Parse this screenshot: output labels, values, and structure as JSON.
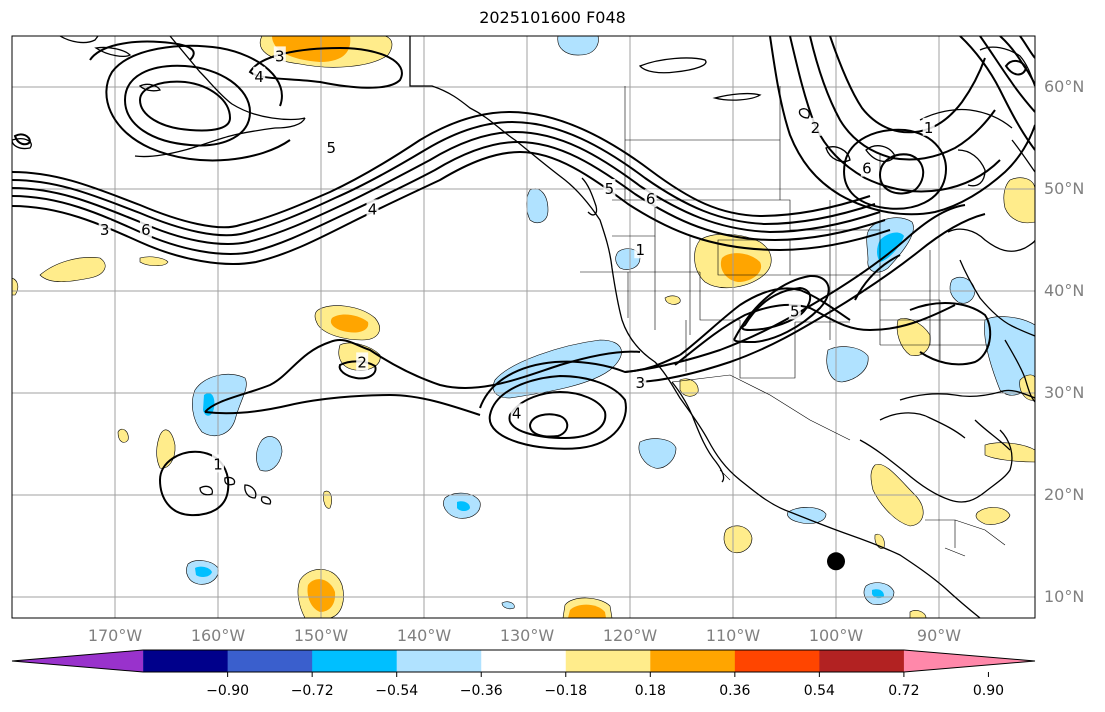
{
  "title": "2025101600 F048",
  "latitude_labels": [
    {
      "text": "60°N",
      "lat": 60
    },
    {
      "text": "50°N",
      "lat": 50
    },
    {
      "text": "40°N",
      "lat": 40
    },
    {
      "text": "30°N",
      "lat": 30
    },
    {
      "text": "20°N",
      "lat": 20
    },
    {
      "text": "10°N",
      "lat": 10
    }
  ],
  "longitude_labels": [
    {
      "text": "170°W",
      "lon": -170
    },
    {
      "text": "160°W",
      "lon": -160
    },
    {
      "text": "150°W",
      "lon": -150
    },
    {
      "text": "140°W",
      "lon": -140
    },
    {
      "text": "130°W",
      "lon": -130
    },
    {
      "text": "120°W",
      "lon": -120
    },
    {
      "text": "110°W",
      "lon": -110
    },
    {
      "text": "100°W",
      "lon": -100
    },
    {
      "text": "90°W",
      "lon": -90
    }
  ],
  "colorbar": {
    "colors": [
      "#9932cc",
      "#00008b",
      "#3a5fcd",
      "#00bfff",
      "#b0e2ff",
      "#ffffff",
      "#ffec8b",
      "#ffa500",
      "#ff4500",
      "#b22222",
      "#ff88aa"
    ],
    "tick_labels": [
      "−0.90",
      "−0.72",
      "−0.54",
      "−0.36",
      "−0.18",
      "0.18",
      "0.36",
      "0.54",
      "0.72",
      "0.90"
    ]
  },
  "contour_labels": [
    {
      "text": "3",
      "lon": -154,
      "lat": 63
    },
    {
      "text": "4",
      "lon": -156,
      "lat": 61
    },
    {
      "text": "5",
      "lon": -149,
      "lat": 54
    },
    {
      "text": "4",
      "lon": -145,
      "lat": 48
    },
    {
      "text": "3",
      "lon": -171,
      "lat": 46
    },
    {
      "text": "6",
      "lon": -167,
      "lat": 46
    },
    {
      "text": "5",
      "lon": -122,
      "lat": 50
    },
    {
      "text": "6",
      "lon": -118,
      "lat": 49
    },
    {
      "text": "1",
      "lon": -119,
      "lat": 44
    },
    {
      "text": "2",
      "lon": -102,
      "lat": 56
    },
    {
      "text": "1",
      "lon": -91,
      "lat": 56
    },
    {
      "text": "6",
      "lon": -97,
      "lat": 52
    },
    {
      "text": "5",
      "lon": -104,
      "lat": 38
    },
    {
      "text": "3",
      "lon": -119,
      "lat": 31
    },
    {
      "text": "2",
      "lon": -146,
      "lat": 33
    },
    {
      "text": "4",
      "lon": -131,
      "lat": 28
    },
    {
      "text": "1",
      "lon": -160,
      "lat": 23
    }
  ],
  "marker": {
    "name": "black-dot",
    "lon": -100,
    "lat": 13.5
  }
}
